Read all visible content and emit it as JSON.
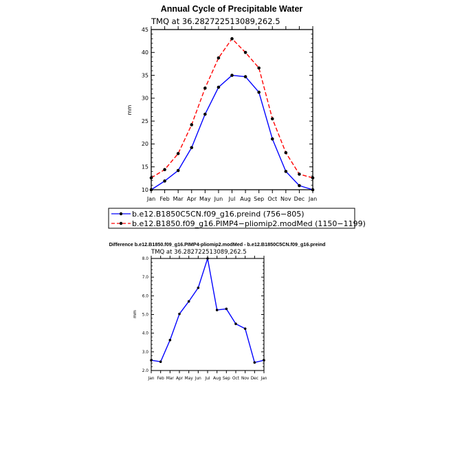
{
  "chart_data": [
    {
      "type": "line",
      "title": "Annual Cycle of Precipitable Water",
      "subtitle": "TMQ  at  36.282722513089,262.5",
      "xlabel": "",
      "ylabel": "mm",
      "categories": [
        "Jan",
        "Feb",
        "Mar",
        "Apr",
        "May",
        "Jun",
        "Jul",
        "Aug",
        "Sep",
        "Oct",
        "Nov",
        "Dec",
        "Jan"
      ],
      "ylim": [
        10,
        45
      ],
      "yticks": [
        10,
        15,
        20,
        25,
        30,
        35,
        40,
        45
      ],
      "ytick_labels": [
        "10",
        "15",
        "20",
        "25",
        "30",
        "35",
        "40",
        "45"
      ],
      "legend_position": "below",
      "series": [
        {
          "name": "b.e12.B1850C5CN.f09_g16.preind (756−805)",
          "color": "#0000ff",
          "dash": "solid",
          "values": [
            10.0,
            11.9,
            14.2,
            19.2,
            26.5,
            32.4,
            35.0,
            34.7,
            31.3,
            21.1,
            14.0,
            10.9,
            10.0
          ]
        },
        {
          "name": "b.e12.B1850.f09_g16.PIMP4−pliomip2.modMed (1150−1199)",
          "color": "#ff0000",
          "dash": "dashed",
          "values": [
            12.6,
            14.4,
            17.9,
            24.2,
            32.2,
            38.8,
            43.0,
            40.0,
            36.6,
            25.5,
            18.1,
            13.4,
            12.6
          ]
        }
      ]
    },
    {
      "type": "line",
      "title": "Difference b.e12.B1850.f09_g16.PIMP4-pliomip2.modMed - b.e12.B1850C5CN.f09_g16.preind",
      "subtitle": "TMQ  at  36.282722513089,262.5",
      "xlabel": "",
      "ylabel": "mm",
      "categories": [
        "Jan",
        "Feb",
        "Mar",
        "Apr",
        "May",
        "Jun",
        "Jul",
        "Aug",
        "Sep",
        "Oct",
        "Nov",
        "Dec",
        "Jan"
      ],
      "ylim": [
        2,
        8
      ],
      "yticks": [
        2,
        3,
        4,
        5,
        6,
        7,
        8
      ],
      "ytick_labels": [
        "2.0",
        "3.0",
        "4.0",
        "5.0",
        "6.0",
        "7.0",
        "8.0"
      ],
      "series": [
        {
          "name": "difference",
          "color": "#0000ff",
          "dash": "solid",
          "values": [
            2.55,
            2.47,
            3.63,
            5.03,
            5.7,
            6.43,
            8.0,
            5.24,
            5.3,
            4.5,
            4.24,
            2.43,
            2.55
          ]
        }
      ]
    }
  ]
}
